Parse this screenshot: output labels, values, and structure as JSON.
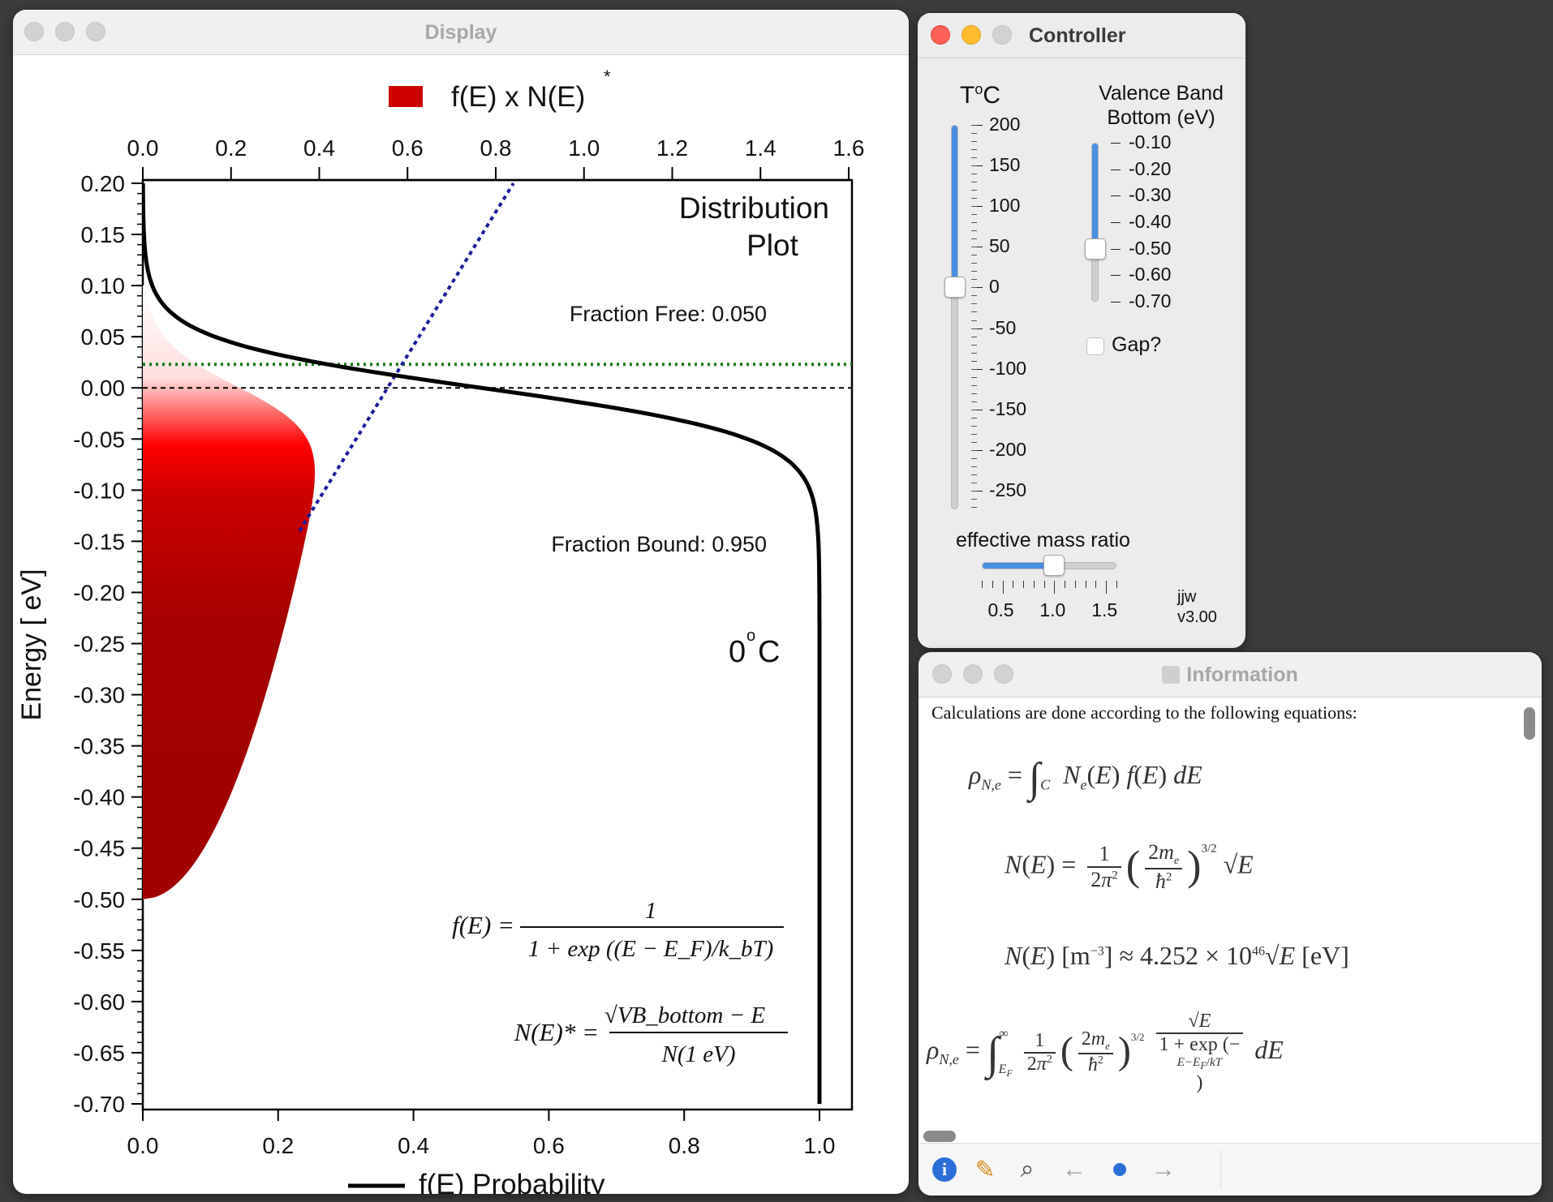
{
  "display": {
    "title": "Display",
    "legend_top": "f(E) x N(E)",
    "legend_top_star": "*",
    "legend_bottom": "f(E) Probability",
    "plot_title_line1": "Distribution",
    "plot_title_line2": "Plot",
    "fraction_free": "Fraction Free: 0.050",
    "fraction_bound": "Fraction Bound: 0.950",
    "temp_value": "0",
    "temp_deg": "o",
    "temp_unit": "C",
    "eq_f_lhs": "f(E) =",
    "eq_f_num": "1",
    "eq_f_den": "1 + exp ((E − E_F)/k_bT)",
    "eq_n_lhs": "N(E)* =",
    "eq_n_num": "√VB_bottom − E",
    "eq_n_den": "N(1 eV)"
  },
  "chart_data": {
    "type": "area",
    "ylabel": "Energy [ eV]",
    "top_axis_ticks": [
      "0.0",
      "0.2",
      "0.4",
      "0.6",
      "0.8",
      "1.0",
      "1.2",
      "1.4",
      "1.6"
    ],
    "top_axis_values": [
      0.0,
      0.2,
      0.4,
      0.6,
      0.8,
      1.0,
      1.2,
      1.4,
      1.6
    ],
    "bottom_axis_ticks": [
      "0.0",
      "0.2",
      "0.4",
      "0.6",
      "0.8",
      "1.0"
    ],
    "bottom_axis_values": [
      0.0,
      0.2,
      0.4,
      0.6,
      0.8,
      1.0
    ],
    "left_axis_ticks": [
      "0.20",
      "0.15",
      "0.10",
      "0.05",
      "0.00",
      "-0.05",
      "-0.10",
      "-0.15",
      "-0.20",
      "-0.25",
      "-0.30",
      "-0.35",
      "-0.40",
      "-0.45",
      "-0.50",
      "-0.55",
      "-0.60",
      "-0.65",
      "-0.70"
    ],
    "left_axis_values": [
      0.2,
      0.15,
      0.1,
      0.05,
      0.0,
      -0.05,
      -0.1,
      -0.15,
      -0.2,
      -0.25,
      -0.3,
      -0.35,
      -0.4,
      -0.45,
      -0.5,
      -0.55,
      -0.6,
      -0.65,
      -0.7
    ],
    "ylim": [
      -0.7,
      0.2
    ],
    "top_xlim": [
      0.0,
      1.6
    ],
    "bottom_xlim": [
      0.0,
      1.0
    ],
    "fermi_level": 0.0,
    "green_level": 0.023,
    "valence_band_bottom": -0.5,
    "fe_peak": 0.39,
    "kT_eV": 0.0235,
    "colors": {
      "fill": "#cc0000",
      "fill_dark": "#a00000",
      "fermi_line": "#000000",
      "green_line": "#1a7a1a",
      "blue_line": "#1a1a9a",
      "curve": "#000000"
    }
  },
  "controller": {
    "title": "Controller",
    "temp_label": "T",
    "temp_deg": "o",
    "temp_unit": "C",
    "temp_ticks": [
      "200",
      "150",
      "100",
      "50",
      "0",
      "-50",
      "-100",
      "-150",
      "-200",
      "-250"
    ],
    "temp_value": 0,
    "temp_range": [
      -273,
      200
    ],
    "vb_label_line1": "Valence Band",
    "vb_label_line2": "Bottom (eV)",
    "vb_ticks": [
      "-0.10",
      "-0.20",
      "-0.30",
      "-0.40",
      "-0.50",
      "-0.60",
      "-0.70"
    ],
    "vb_value": -0.5,
    "vb_range": [
      -0.7,
      -0.1
    ],
    "gap_label": "Gap?",
    "gap_checked": false,
    "mass_label": "effective mass ratio",
    "mass_ticks": [
      "0.5",
      "1.0",
      "1.5"
    ],
    "mass_value": 1.0,
    "mass_range": [
      0.3,
      1.6
    ],
    "author": "jjw",
    "version": "v3.00",
    "accent": "#4a90e2"
  },
  "info": {
    "title": "Information",
    "intro": "Calculations are done according to the following equations:"
  }
}
